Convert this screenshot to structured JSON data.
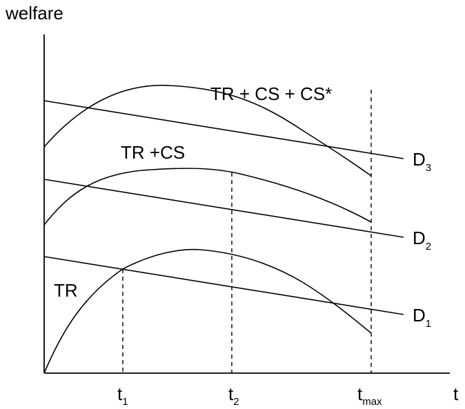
{
  "axes": {
    "y_label": "welfare",
    "x_label": "t"
  },
  "x_ticks": [
    {
      "base": "t",
      "sub": "1"
    },
    {
      "base": "t",
      "sub": "2"
    },
    {
      "base": "t",
      "sub": "max"
    }
  ],
  "curves": [
    {
      "label": "TR"
    },
    {
      "label": "TR +CS"
    },
    {
      "label": "TR + CS + CS*"
    }
  ],
  "lines": [
    {
      "base": "D",
      "sub": "1"
    },
    {
      "base": "D",
      "sub": "2"
    },
    {
      "base": "D",
      "sub": "3"
    }
  ]
}
